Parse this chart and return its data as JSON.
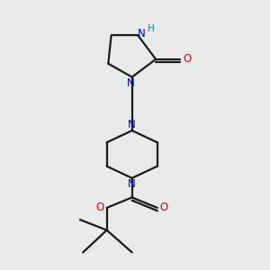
{
  "bg_color": "#eaeaea",
  "bond_color": "#1a1a1a",
  "N_color": "#0000cc",
  "O_color": "#dd0000",
  "H_color": "#008888",
  "line_width": 1.6,
  "font_size": 8.5,
  "fig_size": [
    3.0,
    3.0
  ],
  "dpi": 100,
  "xlim": [
    3.5,
    8.0
  ],
  "ylim": [
    0.8,
    9.8
  ]
}
